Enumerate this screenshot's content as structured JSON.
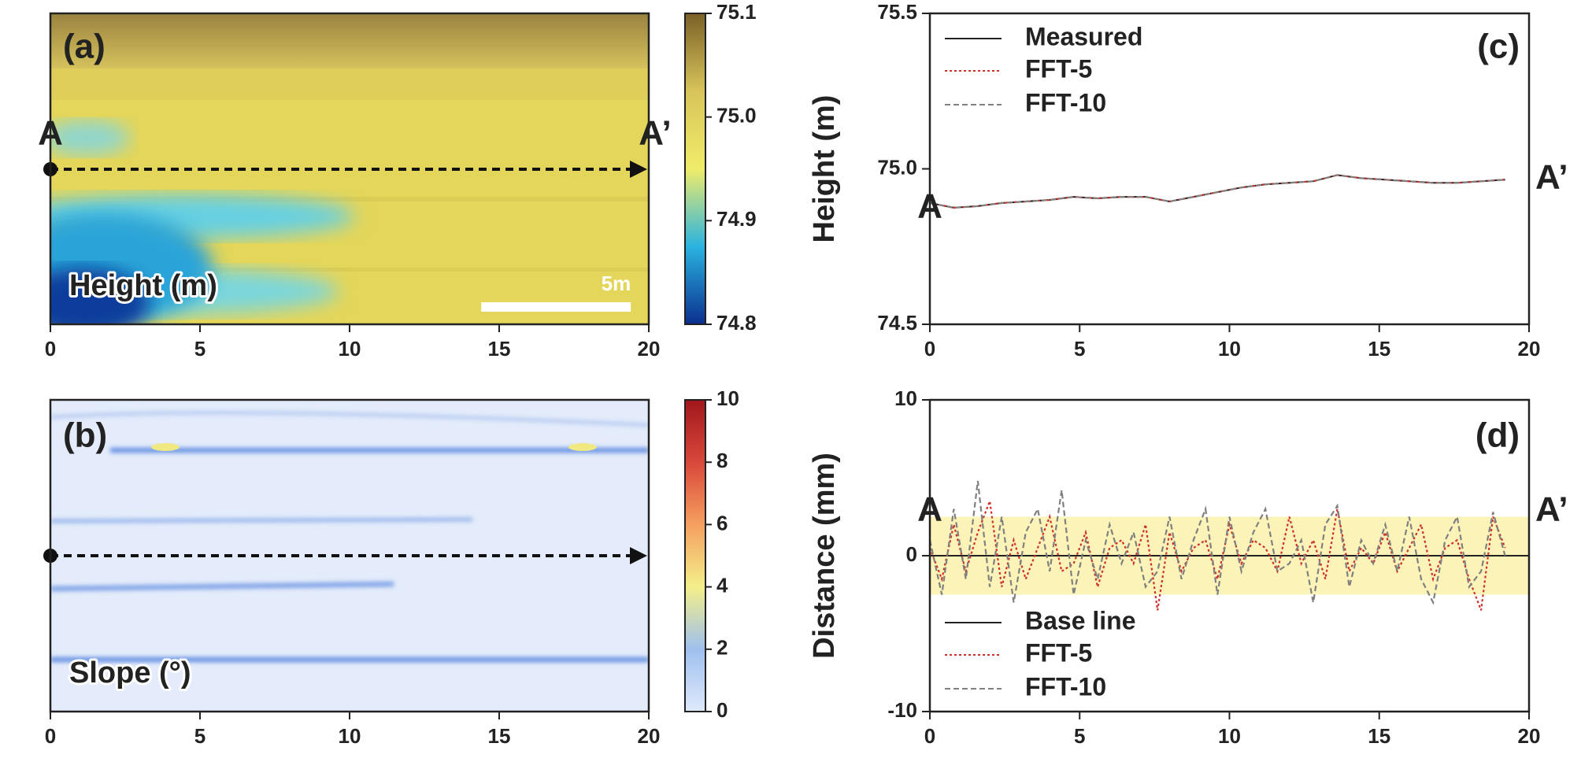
{
  "chart_data": [
    {
      "type": "heatmap",
      "annotations": [
        "(a)",
        "A",
        "A’",
        "Height (m)"
      ],
      "xlim": [
        0,
        20
      ],
      "xticks": [
        0,
        5,
        10,
        15,
        20
      ],
      "scalebar": {
        "start": 14.4,
        "length": 5,
        "label": "5m"
      },
      "clim": [
        74.8,
        75.1
      ],
      "cticks": [
        74.8,
        74.9,
        {
          "value": 75.0,
          "label": "75.0"
        },
        75.1
      ],
      "colormap": [
        "#0b2f8f",
        "#2ab3e0",
        "#f0ec6a",
        "#d8c45a",
        "#7a6028"
      ]
    },
    {
      "type": "heatmap",
      "annotations": [
        "(b)",
        "Slope (°)"
      ],
      "xlim": [
        0,
        20
      ],
      "xticks": [
        0,
        5,
        10,
        15,
        20
      ],
      "clim": [
        0,
        10
      ],
      "cticks": [
        0,
        2,
        4,
        6,
        8,
        10
      ],
      "colormap": [
        "#dfe9fb",
        "#9fc0ee",
        "#f4ef8a",
        "#f5a060",
        "#d9473a",
        "#a0181c"
      ]
    },
    {
      "type": "line",
      "ylabel": "Height (m)",
      "annotations": [
        "(c)",
        "A",
        "A’"
      ],
      "legend": "upper left",
      "xlim": [
        0,
        20
      ],
      "xticks": [
        0,
        5,
        10,
        15,
        20
      ],
      "ylim": [
        74.5,
        75.5
      ],
      "yticks": [
        74.5,
        {
          "value": 75.0,
          "label": "75.0"
        },
        75.5
      ],
      "series": [
        {
          "name": "Measured",
          "color": "#222222",
          "style": "solid",
          "x": [
            0,
            0.8,
            1.6,
            2.4,
            3.2,
            4.0,
            4.8,
            5.6,
            6.4,
            7.2,
            8.0,
            8.8,
            9.6,
            10.4,
            11.2,
            12.0,
            12.8,
            13.6,
            14.4,
            15.2,
            16.0,
            16.8,
            17.6,
            18.4,
            19.2
          ],
          "values": [
            74.89,
            74.875,
            74.88,
            74.89,
            74.895,
            74.9,
            74.91,
            74.905,
            74.91,
            74.91,
            74.895,
            74.91,
            74.925,
            74.94,
            74.95,
            74.955,
            74.96,
            74.98,
            74.97,
            74.965,
            74.96,
            74.955,
            74.955,
            74.96,
            74.965
          ]
        },
        {
          "name": "FFT-5",
          "color": "#d0302a",
          "style": "dotted",
          "x": [
            0,
            0.8,
            1.6,
            2.4,
            3.2,
            4.0,
            4.8,
            5.6,
            6.4,
            7.2,
            8.0,
            8.8,
            9.6,
            10.4,
            11.2,
            12.0,
            12.8,
            13.6,
            14.4,
            15.2,
            16.0,
            16.8,
            17.6,
            18.4,
            19.2
          ],
          "values": [
            74.89,
            74.875,
            74.88,
            74.89,
            74.895,
            74.9,
            74.91,
            74.905,
            74.91,
            74.91,
            74.895,
            74.91,
            74.925,
            74.94,
            74.95,
            74.955,
            74.96,
            74.98,
            74.97,
            74.965,
            74.96,
            74.955,
            74.955,
            74.96,
            74.965
          ]
        },
        {
          "name": "FFT-10",
          "color": "#808080",
          "style": "dashed",
          "x": [
            0,
            0.8,
            1.6,
            2.4,
            3.2,
            4.0,
            4.8,
            5.6,
            6.4,
            7.2,
            8.0,
            8.8,
            9.6,
            10.4,
            11.2,
            12.0,
            12.8,
            13.6,
            14.4,
            15.2,
            16.0,
            16.8,
            17.6,
            18.4,
            19.2
          ],
          "values": [
            74.89,
            74.875,
            74.88,
            74.89,
            74.895,
            74.9,
            74.91,
            74.905,
            74.91,
            74.91,
            74.895,
            74.91,
            74.925,
            74.94,
            74.95,
            74.955,
            74.96,
            74.98,
            74.97,
            74.965,
            74.96,
            74.955,
            74.955,
            74.96,
            74.965
          ]
        }
      ]
    },
    {
      "type": "line",
      "ylabel": "Distance (mm)",
      "annotations": [
        "(d)",
        "A",
        "A’"
      ],
      "legend": "lower left",
      "xlim": [
        0,
        20
      ],
      "xticks": [
        0,
        5,
        10,
        15,
        20
      ],
      "ylim": [
        -10,
        10
      ],
      "yticks": [
        -10,
        0,
        10
      ],
      "band": [
        -2.5,
        2.5
      ],
      "band_color": "#fbf3b8",
      "series": [
        {
          "name": "Base line",
          "color": "#222222",
          "style": "solid",
          "x": [
            0,
            20
          ],
          "values": [
            0,
            0
          ]
        },
        {
          "name": "FFT-5",
          "color": "#d0302a",
          "style": "dotted",
          "x": [
            0,
            0.4,
            0.8,
            1.2,
            1.6,
            2.0,
            2.4,
            2.8,
            3.2,
            3.6,
            4.0,
            4.4,
            4.8,
            5.2,
            5.6,
            6.0,
            6.4,
            6.8,
            7.2,
            7.6,
            8.0,
            8.4,
            8.8,
            9.2,
            9.6,
            10.0,
            10.4,
            10.8,
            11.2,
            11.6,
            12.0,
            12.4,
            12.8,
            13.2,
            13.6,
            14.0,
            14.4,
            14.8,
            15.2,
            15.6,
            16.0,
            16.4,
            16.8,
            17.2,
            17.6,
            18.0,
            18.4,
            18.8,
            19.2
          ],
          "values": [
            0.5,
            -1.5,
            2,
            -1,
            1.5,
            3.5,
            -2,
            1,
            -1.5,
            0.5,
            2.5,
            -1,
            -0.5,
            1.5,
            -2,
            0.5,
            1,
            -0.5,
            2,
            -3.5,
            1.5,
            -1,
            0.5,
            1,
            -1.5,
            2,
            -0.5,
            1,
            0.5,
            -1,
            2.5,
            -0.5,
            1,
            -1.5,
            3,
            -1,
            0.5,
            -0.5,
            1.5,
            -1,
            0.5,
            2,
            -1.5,
            0.5,
            1,
            -1.5,
            -3.5,
            2.5,
            0.5
          ]
        },
        {
          "name": "FFT-10",
          "color": "#808080",
          "style": "dashed",
          "x": [
            0,
            0.4,
            0.8,
            1.2,
            1.6,
            2.0,
            2.4,
            2.8,
            3.2,
            3.6,
            4.0,
            4.4,
            4.8,
            5.2,
            5.6,
            6.0,
            6.4,
            6.8,
            7.2,
            7.6,
            8.0,
            8.4,
            8.8,
            9.2,
            9.6,
            10.0,
            10.4,
            10.8,
            11.2,
            11.6,
            12.0,
            12.4,
            12.8,
            13.2,
            13.6,
            14.0,
            14.4,
            14.8,
            15.2,
            15.6,
            16.0,
            16.4,
            16.8,
            17.2,
            17.6,
            18.0,
            18.4,
            18.8,
            19.2
          ],
          "values": [
            1,
            -2.5,
            3,
            -1.5,
            4.8,
            -2,
            2.5,
            -3,
            1.5,
            3,
            -1,
            4.2,
            -2.5,
            1,
            -1.5,
            2,
            -0.5,
            1.5,
            -2,
            -1,
            2.5,
            -1.5,
            1,
            3,
            -2.5,
            2.5,
            -1,
            1.5,
            3,
            -1,
            -0.5,
            1,
            -3,
            2,
            3.2,
            -2,
            1,
            -0.5,
            2,
            -1,
            2.5,
            -1.5,
            -3,
            1,
            2.5,
            -2,
            -1,
            2.8,
            0
          ]
        }
      ]
    }
  ]
}
